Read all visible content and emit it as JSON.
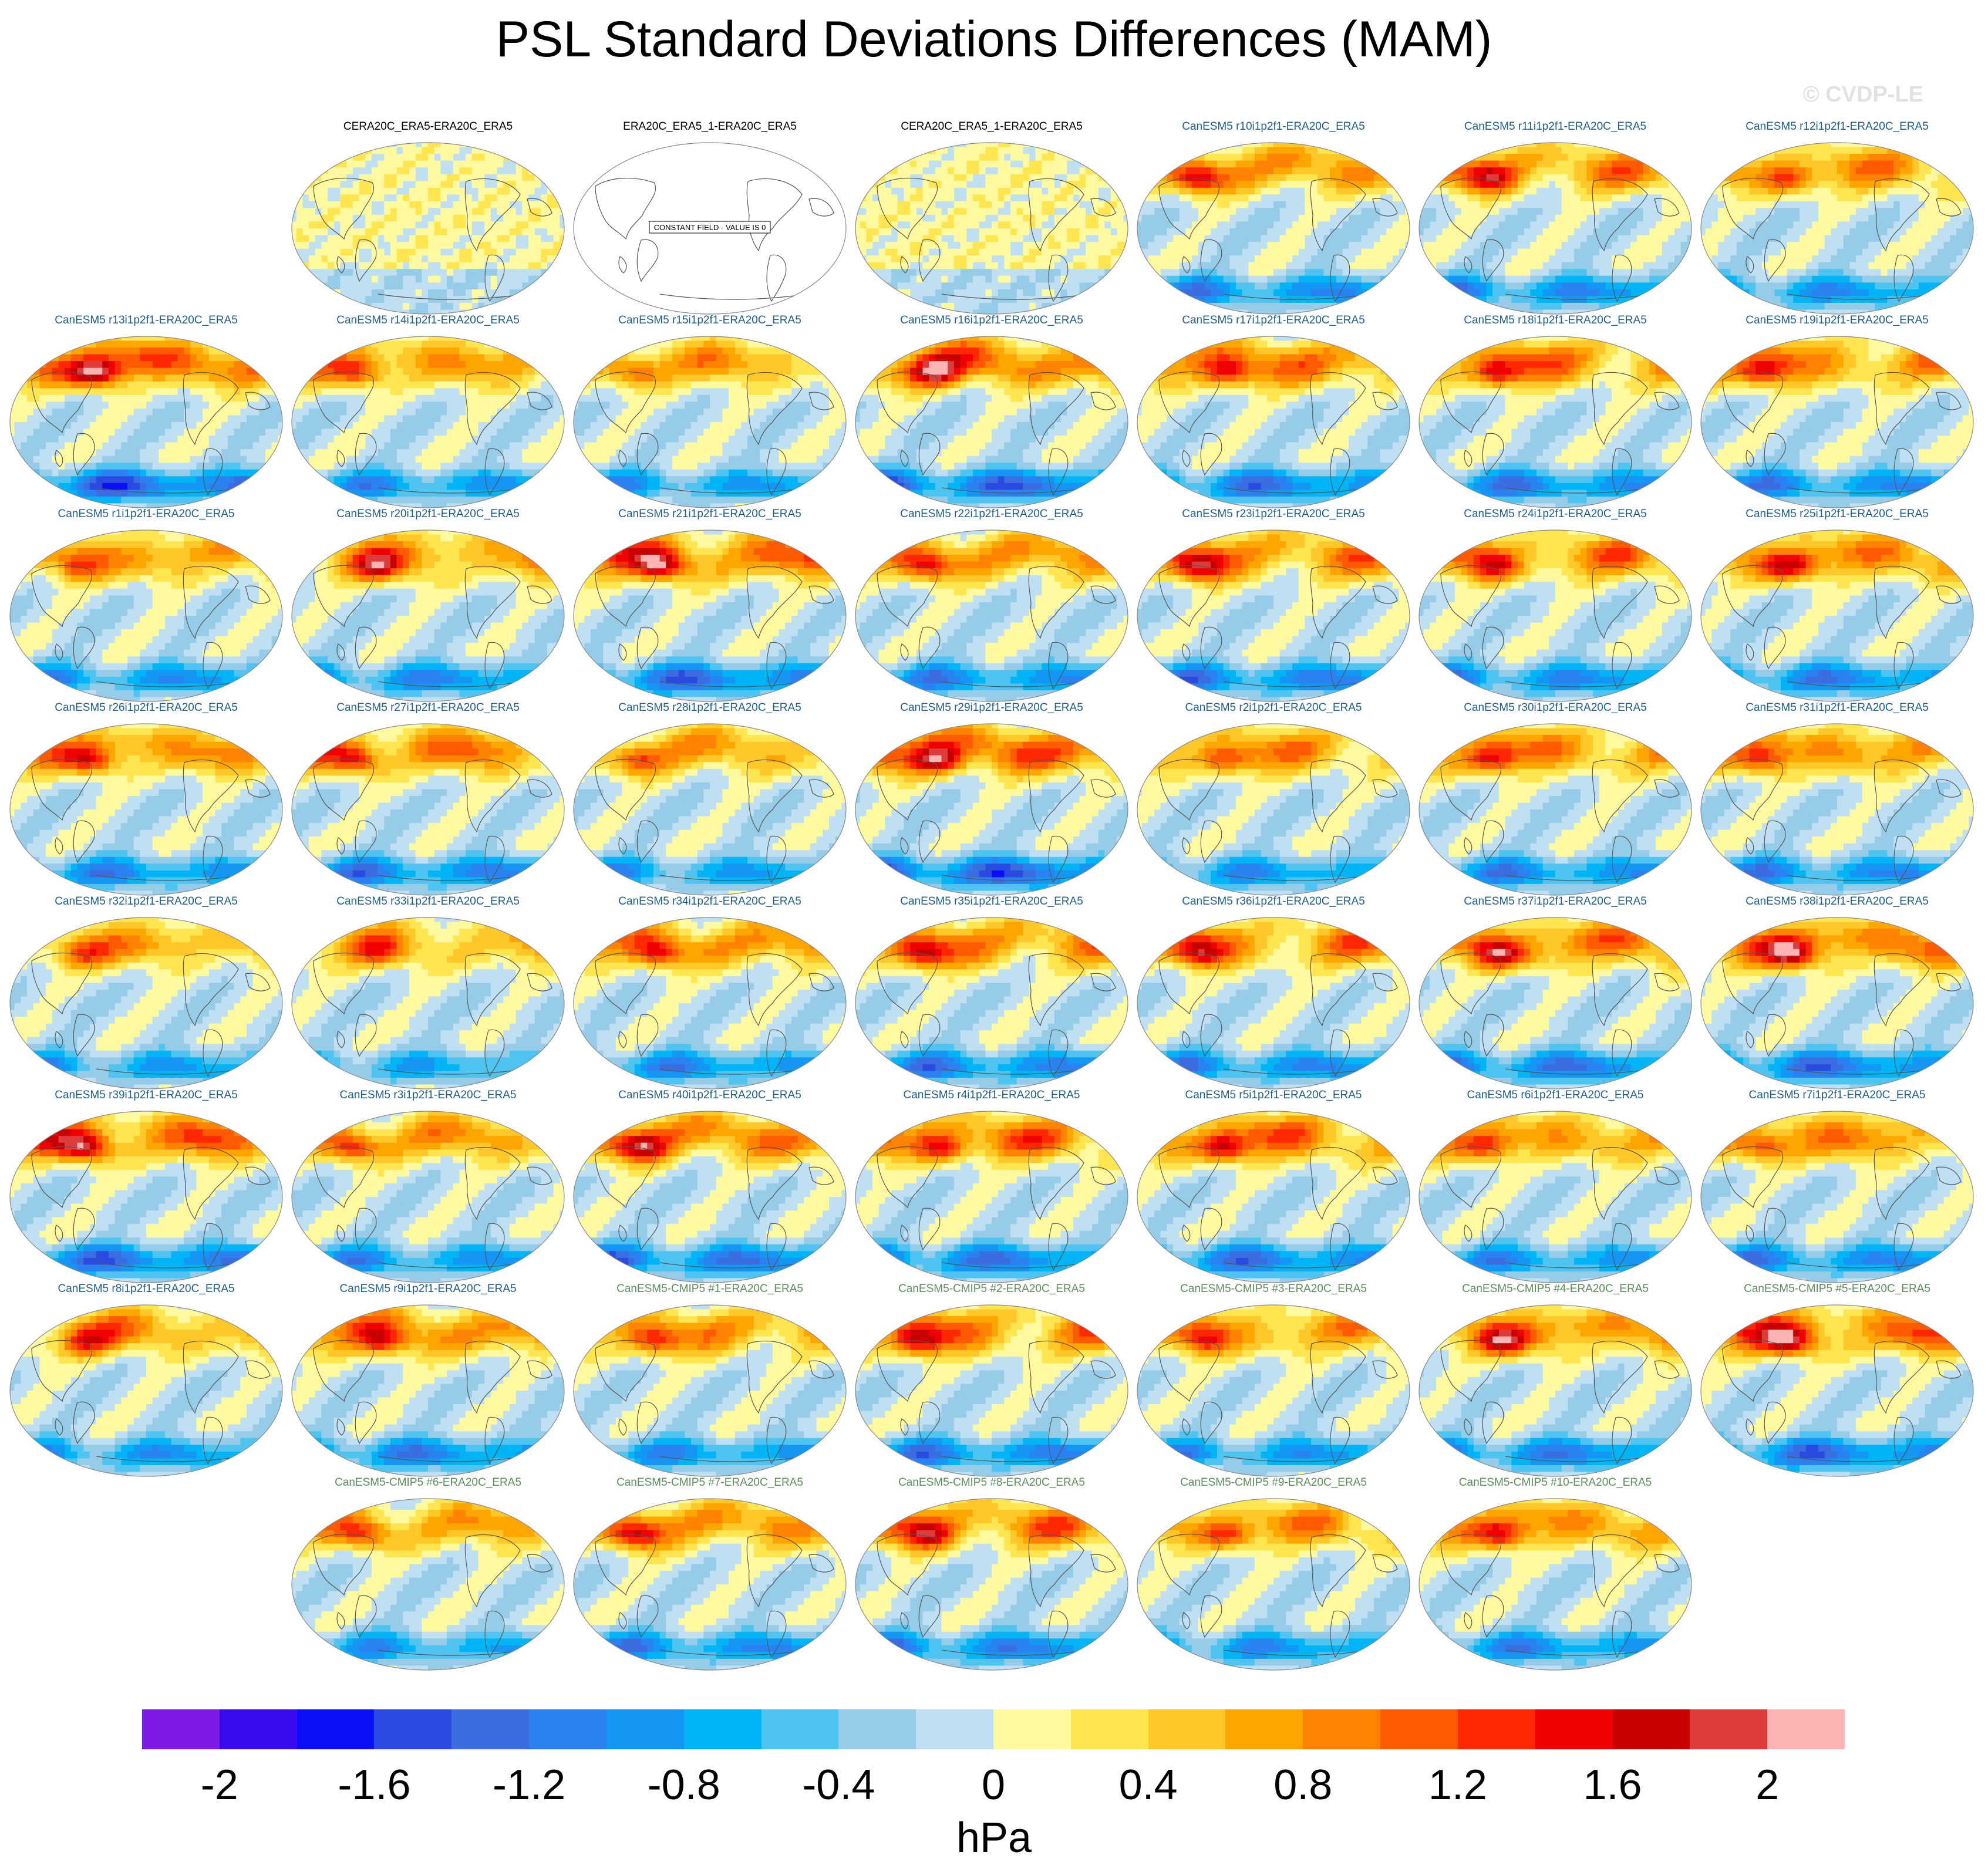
{
  "title": "PSL Standard Deviations Differences (MAM)",
  "watermark": "© CVDP-LE",
  "colors": {
    "obs_title": "#000000",
    "member_title": "#1f5f8b",
    "cmip_title": "#5a8f5a",
    "land_outline": "#555555"
  },
  "chart_data": {
    "type": "heatmap",
    "projection": "Robinson (Pacific-centered)",
    "units": "hPa",
    "colorbar": {
      "levels": [
        -2.2,
        -2.0,
        -1.8,
        -1.6,
        -1.4,
        -1.2,
        -1.0,
        -0.8,
        -0.6,
        -0.4,
        -0.2,
        0,
        0.2,
        0.4,
        0.6,
        0.8,
        1.0,
        1.2,
        1.4,
        1.6,
        1.8,
        2.0,
        2.2
      ],
      "colors": [
        "#7d1ae6",
        "#3a0af0",
        "#0a10f5",
        "#2a4ae0",
        "#3a6ee0",
        "#2a82f0",
        "#1496f5",
        "#00b4f5",
        "#50c4f0",
        "#96cce8",
        "#bee0f2",
        "#fffaa0",
        "#ffe650",
        "#ffc828",
        "#ffa500",
        "#ff8200",
        "#ff5a00",
        "#ff2800",
        "#f00000",
        "#c80000",
        "#dc3c3c",
        "#ffb4b4"
      ],
      "tick_labels": [
        "-2",
        "-1.6",
        "-1.2",
        "-0.8",
        "-0.4",
        "0",
        "0.4",
        "0.8",
        "1.2",
        "1.6",
        "2"
      ],
      "tick_values": [
        -2,
        -1.6,
        -1.2,
        -0.8,
        -0.4,
        0,
        0.4,
        0.8,
        1.2,
        1.6,
        2
      ],
      "label": "hPa"
    },
    "panels": [
      {
        "title": "CERA20C_ERA5-ERA20C_ERA5",
        "kind": "obs",
        "row": 0,
        "col": 1,
        "amp": 0.3
      },
      {
        "title": "ERA20C_ERA5_1-ERA20C_ERA5",
        "kind": "constant",
        "row": 0,
        "col": 2,
        "amp": 0,
        "note": "CONSTANT FIELD - VALUE IS 0"
      },
      {
        "title": "CERA20C_ERA5_1-ERA20C_ERA5",
        "kind": "obs",
        "row": 0,
        "col": 3,
        "amp": 0.3
      },
      {
        "title": "CanESM5 r10i1p2f1-ERA20C_ERA5",
        "kind": "member",
        "row": 0,
        "col": 4,
        "amp": 1.3
      },
      {
        "title": "CanESM5 r11i1p2f1-ERA20C_ERA5",
        "kind": "member",
        "row": 0,
        "col": 5,
        "amp": 1.3
      },
      {
        "title": "CanESM5 r12i1p2f1-ERA20C_ERA5",
        "kind": "member",
        "row": 0,
        "col": 6,
        "amp": 1.2
      },
      {
        "title": "CanESM5 r13i1p2f1-ERA20C_ERA5",
        "kind": "member",
        "row": 1,
        "col": 0,
        "amp": 1.8
      },
      {
        "title": "CanESM5 r14i1p2f1-ERA20C_ERA5",
        "kind": "member",
        "row": 1,
        "col": 1,
        "amp": 1.2
      },
      {
        "title": "CanESM5 r15i1p2f1-ERA20C_ERA5",
        "kind": "member",
        "row": 1,
        "col": 2,
        "amp": 1.1
      },
      {
        "title": "CanESM5 r16i1p2f1-ERA20C_ERA5",
        "kind": "member",
        "row": 1,
        "col": 3,
        "amp": 1.7
      },
      {
        "title": "CanESM5 r17i1p2f1-ERA20C_ERA5",
        "kind": "member",
        "row": 1,
        "col": 4,
        "amp": 1.5
      },
      {
        "title": "CanESM5 r18i1p2f1-ERA20C_ERA5",
        "kind": "member",
        "row": 1,
        "col": 5,
        "amp": 1.4
      },
      {
        "title": "CanESM5 r19i1p2f1-ERA20C_ERA5",
        "kind": "member",
        "row": 1,
        "col": 6,
        "amp": 1.3
      },
      {
        "title": "CanESM5 r1i1p2f1-ERA20C_ERA5",
        "kind": "member",
        "row": 2,
        "col": 0,
        "amp": 1.2
      },
      {
        "title": "CanESM5 r20i1p2f1-ERA20C_ERA5",
        "kind": "member",
        "row": 2,
        "col": 1,
        "amp": 1.3
      },
      {
        "title": "CanESM5 r21i1p2f1-ERA20C_ERA5",
        "kind": "member",
        "row": 2,
        "col": 2,
        "amp": 1.6
      },
      {
        "title": "CanESM5 r22i1p2f1-ERA20C_ERA5",
        "kind": "member",
        "row": 2,
        "col": 3,
        "amp": 1.3
      },
      {
        "title": "CanESM5 r23i1p2f1-ERA20C_ERA5",
        "kind": "member",
        "row": 2,
        "col": 4,
        "amp": 1.4
      },
      {
        "title": "CanESM5 r24i1p2f1-ERA20C_ERA5",
        "kind": "member",
        "row": 2,
        "col": 5,
        "amp": 1.3
      },
      {
        "title": "CanESM5 r25i1p2f1-ERA20C_ERA5",
        "kind": "member",
        "row": 2,
        "col": 6,
        "amp": 1.4
      },
      {
        "title": "CanESM5 r26i1p2f1-ERA20C_ERA5",
        "kind": "member",
        "row": 3,
        "col": 0,
        "amp": 1.3
      },
      {
        "title": "CanESM5 r27i1p2f1-ERA20C_ERA5",
        "kind": "member",
        "row": 3,
        "col": 1,
        "amp": 1.4
      },
      {
        "title": "CanESM5 r28i1p2f1-ERA20C_ERA5",
        "kind": "member",
        "row": 3,
        "col": 2,
        "amp": 1.1
      },
      {
        "title": "CanESM5 r29i1p2f1-ERA20C_ERA5",
        "kind": "member",
        "row": 3,
        "col": 3,
        "amp": 1.8
      },
      {
        "title": "CanESM5 r2i1p2f1-ERA20C_ERA5",
        "kind": "member",
        "row": 3,
        "col": 4,
        "amp": 1.2
      },
      {
        "title": "CanESM5 r30i1p2f1-ERA20C_ERA5",
        "kind": "member",
        "row": 3,
        "col": 5,
        "amp": 1.3
      },
      {
        "title": "CanESM5 r31i1p2f1-ERA20C_ERA5",
        "kind": "member",
        "row": 3,
        "col": 6,
        "amp": 1.3
      },
      {
        "title": "CanESM5 r32i1p2f1-ERA20C_ERA5",
        "kind": "member",
        "row": 4,
        "col": 0,
        "amp": 1.1
      },
      {
        "title": "CanESM5 r33i1p2f1-ERA20C_ERA5",
        "kind": "member",
        "row": 4,
        "col": 1,
        "amp": 1.0
      },
      {
        "title": "CanESM5 r34i1p2f1-ERA20C_ERA5",
        "kind": "member",
        "row": 4,
        "col": 2,
        "amp": 1.3
      },
      {
        "title": "CanESM5 r35i1p2f1-ERA20C_ERA5",
        "kind": "member",
        "row": 4,
        "col": 3,
        "amp": 1.4
      },
      {
        "title": "CanESM5 r36i1p2f1-ERA20C_ERA5",
        "kind": "member",
        "row": 4,
        "col": 4,
        "amp": 1.3
      },
      {
        "title": "CanESM5 r37i1p2f1-ERA20C_ERA5",
        "kind": "member",
        "row": 4,
        "col": 5,
        "amp": 1.5
      },
      {
        "title": "CanESM5 r38i1p2f1-ERA20C_ERA5",
        "kind": "member",
        "row": 4,
        "col": 6,
        "amp": 1.6
      },
      {
        "title": "CanESM5 r39i1p2f1-ERA20C_ERA5",
        "kind": "member",
        "row": 5,
        "col": 0,
        "amp": 1.6
      },
      {
        "title": "CanESM5 r3i1p2f1-ERA20C_ERA5",
        "kind": "member",
        "row": 5,
        "col": 1,
        "amp": 1.2
      },
      {
        "title": "CanESM5 r40i1p2f1-ERA20C_ERA5",
        "kind": "member",
        "row": 5,
        "col": 2,
        "amp": 1.5
      },
      {
        "title": "CanESM5 r4i1p2f1-ERA20C_ERA5",
        "kind": "member",
        "row": 5,
        "col": 3,
        "amp": 1.5
      },
      {
        "title": "CanESM5 r5i1p2f1-ERA20C_ERA5",
        "kind": "member",
        "row": 5,
        "col": 4,
        "amp": 1.5
      },
      {
        "title": "CanESM5 r6i1p2f1-ERA20C_ERA5",
        "kind": "member",
        "row": 5,
        "col": 5,
        "amp": 1.2
      },
      {
        "title": "CanESM5 r7i1p2f1-ERA20C_ERA5",
        "kind": "member",
        "row": 5,
        "col": 6,
        "amp": 1.3
      },
      {
        "title": "CanESM5 r8i1p2f1-ERA20C_ERA5",
        "kind": "member",
        "row": 6,
        "col": 0,
        "amp": 1.2
      },
      {
        "title": "CanESM5 r9i1p2f1-ERA20C_ERA5",
        "kind": "member",
        "row": 6,
        "col": 1,
        "amp": 1.4
      },
      {
        "title": "CanESM5-CMIP5 #1-ERA20C_ERA5",
        "kind": "cmip",
        "row": 6,
        "col": 2,
        "amp": 1.2
      },
      {
        "title": "CanESM5-CMIP5 #2-ERA20C_ERA5",
        "kind": "cmip",
        "row": 6,
        "col": 3,
        "amp": 1.4
      },
      {
        "title": "CanESM5-CMIP5 #3-ERA20C_ERA5",
        "kind": "cmip",
        "row": 6,
        "col": 4,
        "amp": 1.2
      },
      {
        "title": "CanESM5-CMIP5 #4-ERA20C_ERA5",
        "kind": "cmip",
        "row": 6,
        "col": 5,
        "amp": 1.4
      },
      {
        "title": "CanESM5-CMIP5 #5-ERA20C_ERA5",
        "kind": "cmip",
        "row": 6,
        "col": 6,
        "amp": 1.6
      },
      {
        "title": "CanESM5-CMIP5 #6-ERA20C_ERA5",
        "kind": "cmip",
        "row": 7,
        "col": 1,
        "amp": 1.1
      },
      {
        "title": "CanESM5-CMIP5 #7-ERA20C_ERA5",
        "kind": "cmip",
        "row": 7,
        "col": 2,
        "amp": 1.3
      },
      {
        "title": "CanESM5-CMIP5 #8-ERA20C_ERA5",
        "kind": "cmip",
        "row": 7,
        "col": 3,
        "amp": 1.4
      },
      {
        "title": "CanESM5-CMIP5 #9-ERA20C_ERA5",
        "kind": "cmip",
        "row": 7,
        "col": 4,
        "amp": 1.2
      },
      {
        "title": "CanESM5-CMIP5 #10-ERA20C_ERA5",
        "kind": "cmip",
        "row": 7,
        "col": 5,
        "amp": 1.3
      }
    ]
  }
}
